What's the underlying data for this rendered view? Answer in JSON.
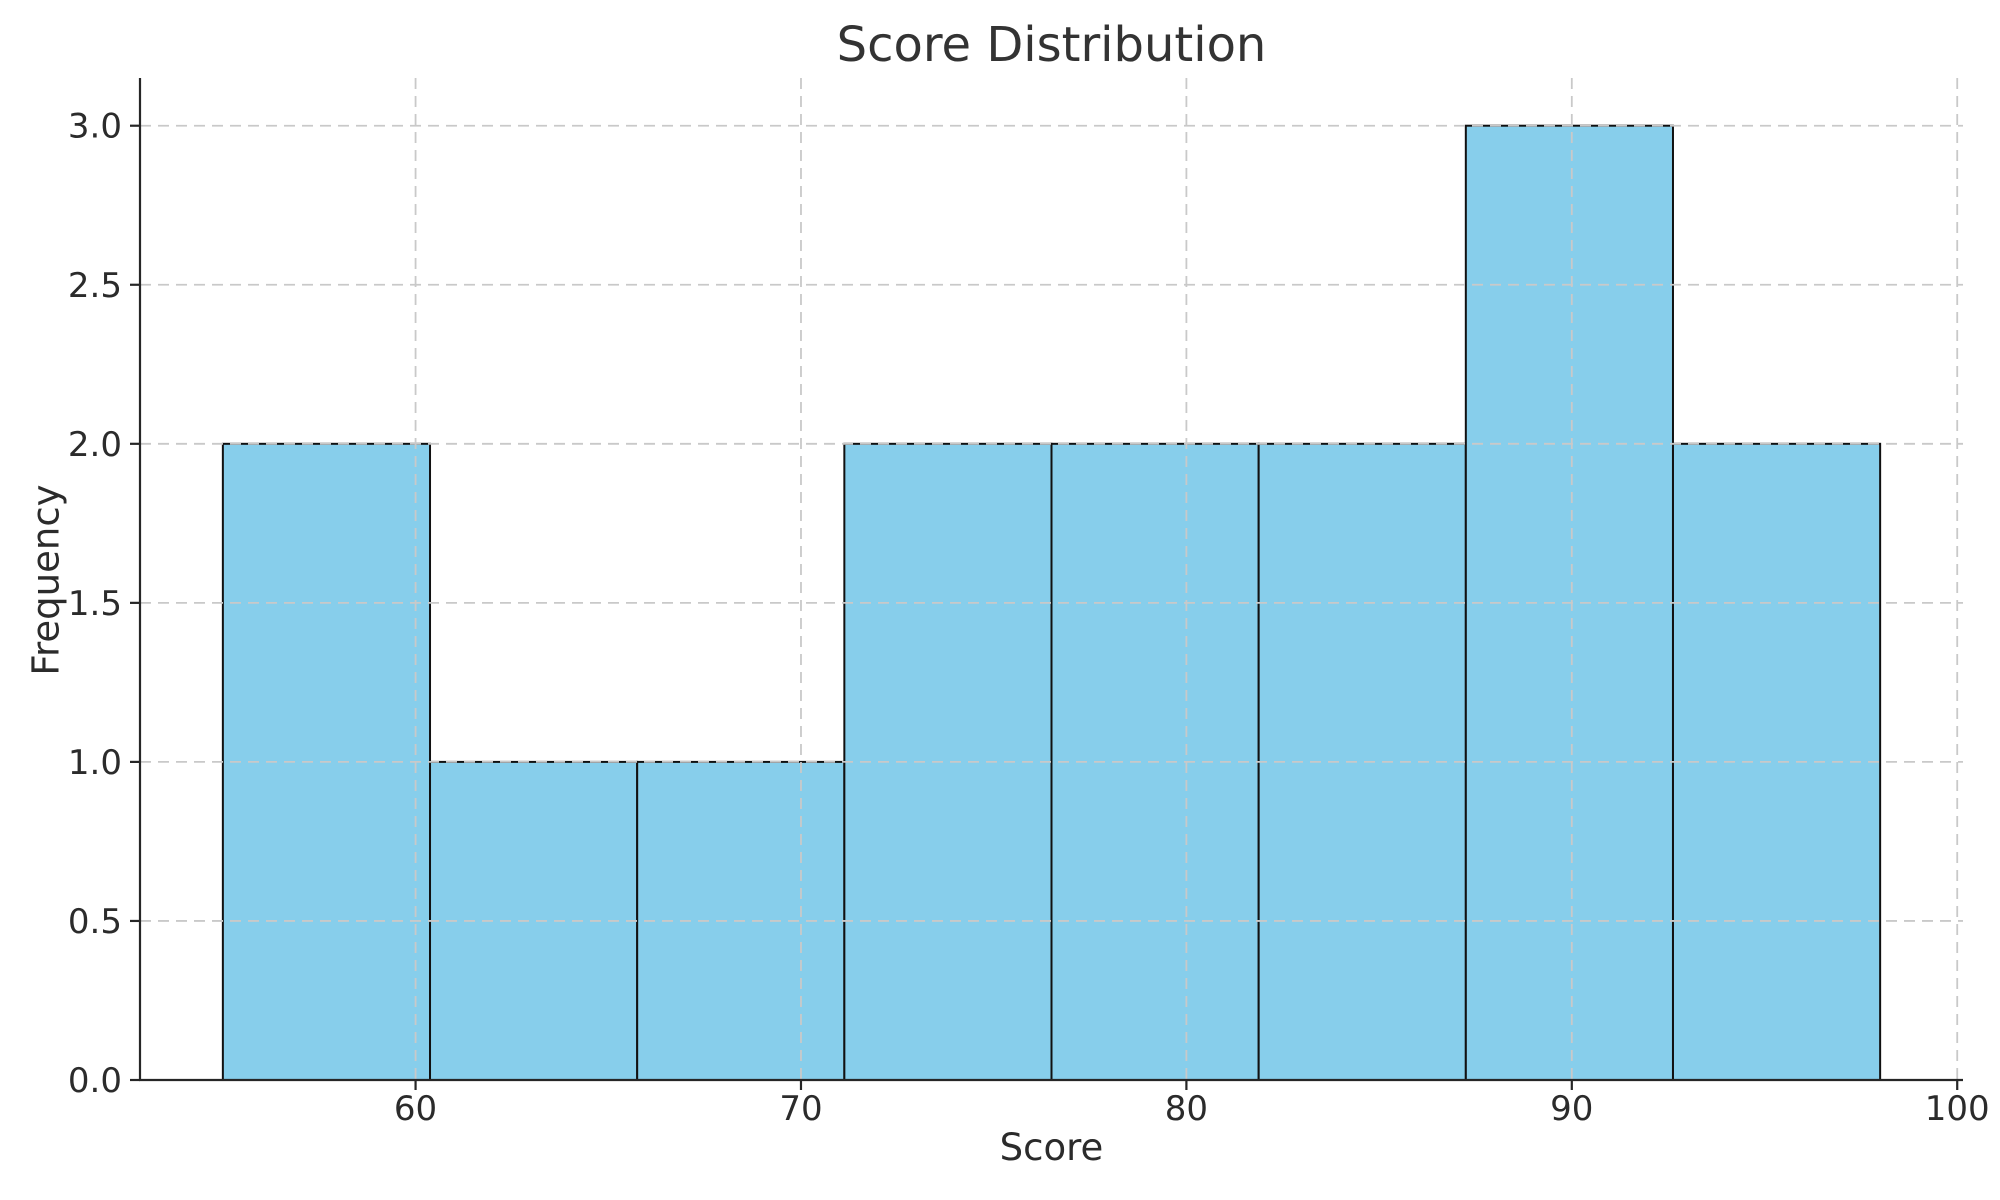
{
  "chart_data": {
    "type": "bar",
    "subtype": "histogram",
    "title": "Score Distribution",
    "xlabel": "Score",
    "ylabel": "Frequency",
    "bin_edges": [
      55.0,
      60.375,
      65.75,
      71.125,
      76.5,
      81.875,
      87.25,
      92.625,
      98.0
    ],
    "counts": [
      2,
      1,
      1,
      2,
      2,
      2,
      3,
      2
    ],
    "total_observations": 15,
    "xlim": [
      52.85,
      100.15
    ],
    "ylim": [
      0,
      3.15
    ],
    "xticks": [
      {
        "v": 60,
        "label": "60"
      },
      {
        "v": 70,
        "label": "70"
      },
      {
        "v": 80,
        "label": "80"
      },
      {
        "v": 90,
        "label": "90"
      },
      {
        "v": 100,
        "label": "100"
      }
    ],
    "yticks": [
      {
        "v": 0.0,
        "label": "0.0"
      },
      {
        "v": 0.5,
        "label": "0.5"
      },
      {
        "v": 1.0,
        "label": "1.0"
      },
      {
        "v": 1.5,
        "label": "1.5"
      },
      {
        "v": 2.0,
        "label": "2.0"
      },
      {
        "v": 2.5,
        "label": "2.5"
      },
      {
        "v": 3.0,
        "label": "3.0"
      }
    ],
    "grid": {
      "show": true,
      "linestyle": "dashed",
      "axis": "both",
      "above_bars": true
    },
    "legend": {
      "show": false
    },
    "colors": {
      "bar_fill": "#87CEEB",
      "bar_edge": "#111111",
      "grid": "#c9c9c9",
      "spine": "#262626",
      "tick_text": "#2b2b2b",
      "title_text": "#333333",
      "background": "#ffffff"
    }
  }
}
